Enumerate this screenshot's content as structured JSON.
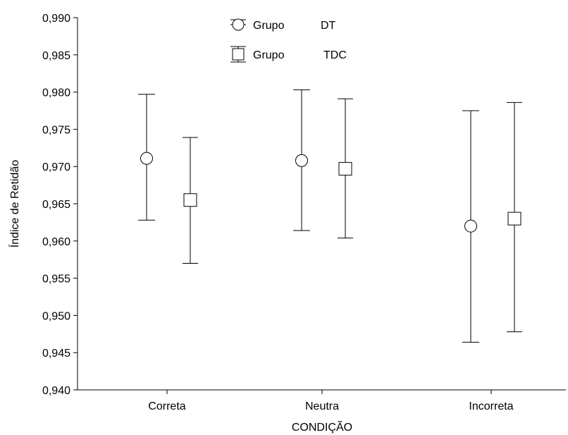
{
  "chart_data": {
    "type": "scatter",
    "xlabel": "CONDIÇÃO",
    "ylabel": "Índice de Retidão",
    "categories": [
      "Correta",
      "Neutra",
      "Incorreta"
    ],
    "ylim": [
      0.94,
      0.99
    ],
    "yticks": [
      "0,940",
      "0,945",
      "0,950",
      "0,955",
      "0,960",
      "0,965",
      "0,970",
      "0,975",
      "0,980",
      "0,985",
      "0,990"
    ],
    "grid": false,
    "legend_position": "top-center",
    "series": [
      {
        "legend_label": "Grupo",
        "legend_group": "DT",
        "marker": "circle",
        "values": [
          0.9711,
          0.9708,
          0.962
        ],
        "lower": [
          0.9628,
          0.9614,
          0.9464
        ],
        "upper": [
          0.9797,
          0.9803,
          0.9775
        ]
      },
      {
        "legend_label": "Grupo",
        "legend_group": "TDC",
        "marker": "square",
        "values": [
          0.9655,
          0.9697,
          0.963
        ],
        "lower": [
          0.957,
          0.9604,
          0.9478
        ],
        "upper": [
          0.9739,
          0.9791,
          0.9786
        ]
      }
    ]
  }
}
